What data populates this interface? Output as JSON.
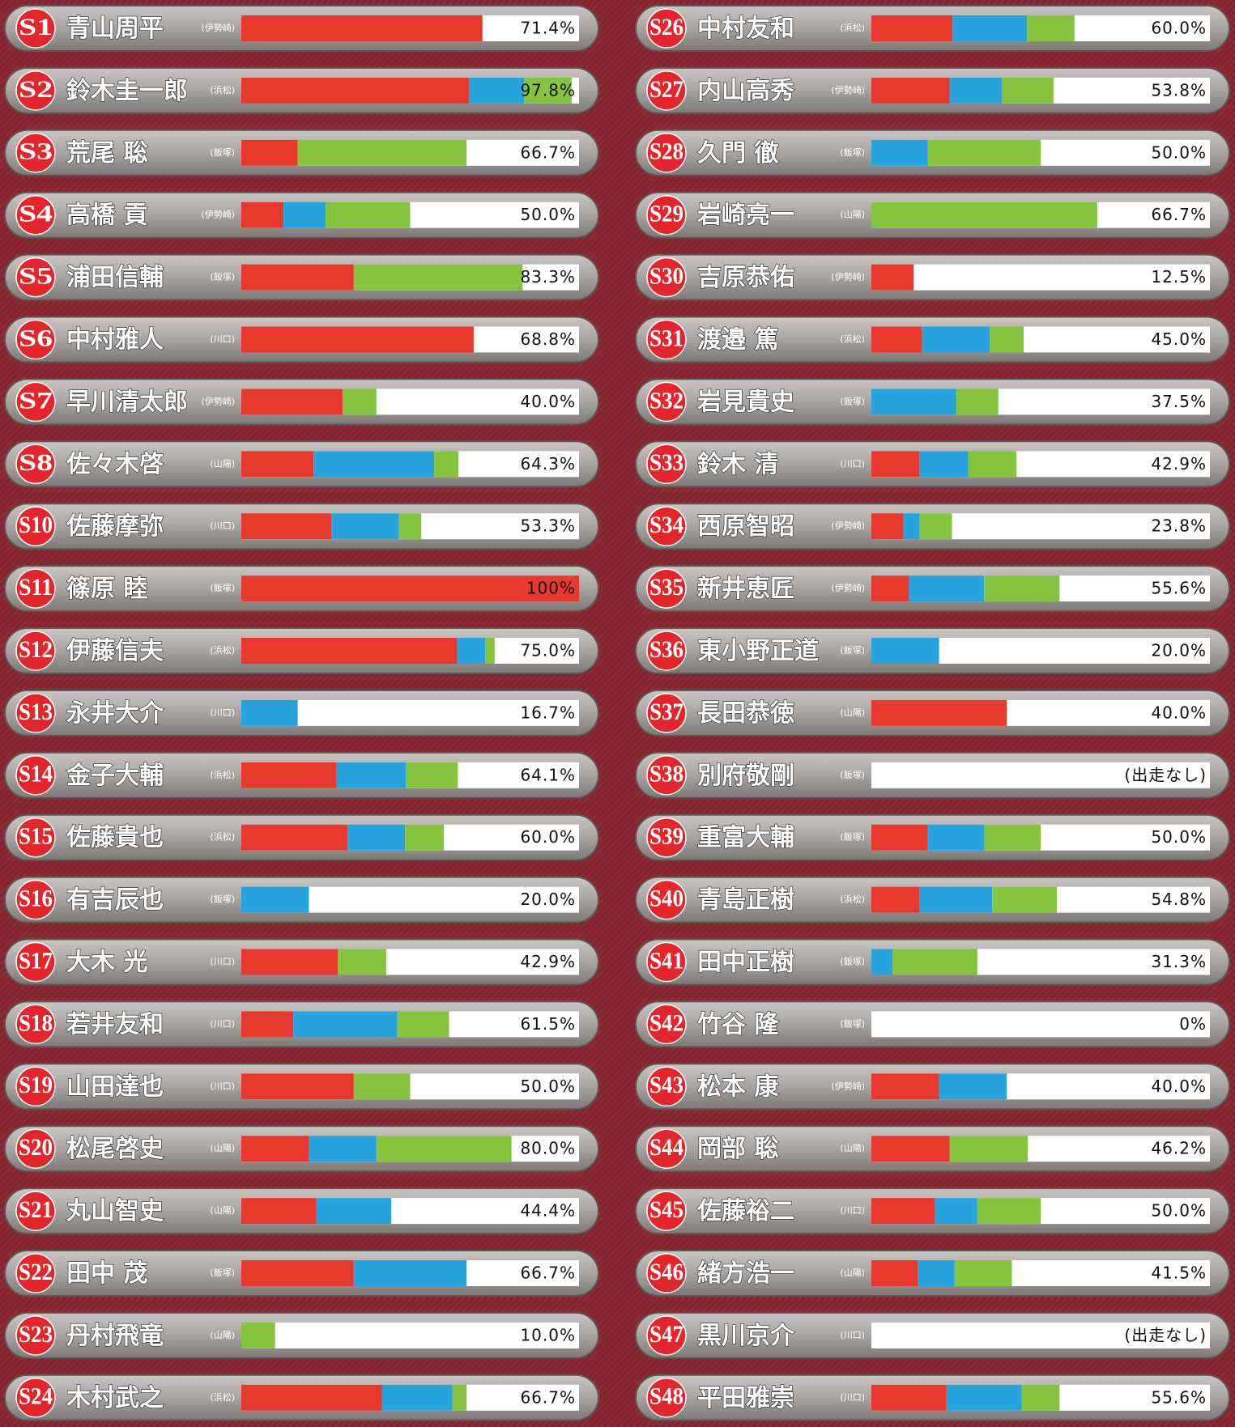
{
  "chart_data": [
    {
      "type": "bar",
      "orientation": "horizontal",
      "stacked": true,
      "xlim": [
        0,
        100
      ],
      "categories": [
        "S1",
        "S2",
        "S3",
        "S4",
        "S5",
        "S6",
        "S7",
        "S8",
        "S10",
        "S11",
        "S12",
        "S13",
        "S14",
        "S15",
        "S16",
        "S17",
        "S18",
        "S19",
        "S20",
        "S21",
        "S22",
        "S23",
        "S24"
      ],
      "names": [
        "青山周平",
        "鈴木圭一郎",
        "荒尾 聡",
        "高橋 貢",
        "浦田信輔",
        "中村雅人",
        "早川清太郎",
        "佐々木啓",
        "佐藤摩弥",
        "篠原 睦",
        "伊藤信夫",
        "永井大介",
        "金子大輔",
        "佐藤貴也",
        "有吉辰也",
        "大木 光",
        "若井友和",
        "山田達也",
        "松尾啓史",
        "丸山智史",
        "田中 茂",
        "丹村飛竜",
        "木村武之"
      ],
      "branches": [
        "(伊勢崎)",
        "(浜松)",
        "(飯塚)",
        "(伊勢崎)",
        "(飯塚)",
        "(川口)",
        "(伊勢崎)",
        "(山陽)",
        "(川口)",
        "(飯塚)",
        "(浜松)",
        "(川口)",
        "(浜松)",
        "(浜松)",
        "(飯塚)",
        "(川口)",
        "(川口)",
        "(川口)",
        "(山陽)",
        "(山陽)",
        "(飯塚)",
        "(山陽)",
        "(浜松)"
      ],
      "series": [
        {
          "color": "#e8392f",
          "values": [
            71.4,
            67.4,
            16.7,
            12.5,
            33.3,
            68.8,
            30,
            21.4,
            26.7,
            100,
            63.9,
            0,
            28.2,
            31.4,
            0,
            28.6,
            15.4,
            33.3,
            20,
            22.2,
            33.3,
            0,
            41.7
          ]
        },
        {
          "color": "#27a3dd",
          "values": [
            0,
            16.3,
            0,
            12.5,
            0,
            0,
            0,
            35.7,
            20,
            0,
            8.3,
            16.7,
            20.5,
            17.1,
            20,
            0,
            30.8,
            0,
            20,
            22.2,
            33.4,
            0,
            20.8
          ]
        },
        {
          "color": "#86c440",
          "values": [
            0,
            14.1,
            50,
            25,
            50,
            0,
            10,
            7.2,
            6.6,
            0,
            2.8,
            0,
            15.4,
            11.5,
            0,
            14.3,
            15.3,
            16.7,
            40,
            0,
            0,
            10,
            4.2
          ]
        }
      ],
      "totals": [
        71.4,
        97.8,
        66.7,
        50,
        83.3,
        68.8,
        40,
        64.3,
        53.3,
        100,
        75,
        16.7,
        64.1,
        60,
        20,
        42.9,
        61.5,
        50,
        80,
        44.4,
        66.7,
        10,
        66.7
      ],
      "value_labels": [
        "71.4%",
        "97.8%",
        "66.7%",
        "50.0%",
        "83.3%",
        "68.8%",
        "40.0%",
        "64.3%",
        "53.3%",
        "100%",
        "75.0%",
        "16.7%",
        "64.1%",
        "60.0%",
        "20.0%",
        "42.9%",
        "61.5%",
        "50.0%",
        "80.0%",
        "44.4%",
        "66.7%",
        "10.0%",
        "66.7%"
      ]
    },
    {
      "type": "bar",
      "orientation": "horizontal",
      "stacked": true,
      "xlim": [
        0,
        100
      ],
      "categories": [
        "S26",
        "S27",
        "S28",
        "S29",
        "S30",
        "S31",
        "S32",
        "S33",
        "S34",
        "S35",
        "S36",
        "S37",
        "S38",
        "S39",
        "S40",
        "S41",
        "S42",
        "S43",
        "S44",
        "S45",
        "S46",
        "S47",
        "S48"
      ],
      "names": [
        "中村友和",
        "内山高秀",
        "久門 徹",
        "岩崎亮一",
        "吉原恭佑",
        "渡邉 篤",
        "岩見貴史",
        "鈴木 清",
        "西原智昭",
        "新井恵匠",
        "東小野正道",
        "長田恭徳",
        "別府敬剛",
        "重富大輔",
        "青島正樹",
        "田中正樹",
        "竹谷 隆",
        "松本 康",
        "岡部 聡",
        "佐藤裕二",
        "緒方浩一",
        "黒川京介",
        "平田雅崇"
      ],
      "branches": [
        "(浜松)",
        "(伊勢崎)",
        "(飯塚)",
        "(山陽)",
        "(伊勢崎)",
        "(浜松)",
        "(飯塚)",
        "(川口)",
        "(伊勢崎)",
        "(伊勢崎)",
        "(飯塚)",
        "(山陽)",
        "(飯塚)",
        "(飯塚)",
        "(浜松)",
        "(飯塚)",
        "(飯塚)",
        "(伊勢崎)",
        "(山陽)",
        "(川口)",
        "(山陽)",
        "(川口)",
        "(川口)"
      ],
      "series": [
        {
          "color": "#e8392f",
          "values": [
            24,
            23.1,
            0,
            0,
            12.5,
            15,
            0,
            14.3,
            9.5,
            11.1,
            0,
            40,
            null,
            16.7,
            14.3,
            0,
            0,
            20,
            23.1,
            18.8,
            13.8,
            null,
            22.2
          ]
        },
        {
          "color": "#27a3dd",
          "values": [
            22,
            15.4,
            16.7,
            0,
            0,
            20,
            25,
            14.3,
            4.8,
            22.2,
            20,
            0,
            null,
            16.7,
            21.4,
            6.3,
            0,
            20,
            0,
            12.5,
            10.8,
            null,
            22.2
          ]
        },
        {
          "color": "#86c440",
          "values": [
            14,
            15.3,
            33.3,
            66.7,
            0,
            10,
            12.5,
            14.3,
            9.5,
            22.3,
            0,
            0,
            null,
            16.6,
            19.1,
            25,
            0,
            0,
            23.1,
            18.7,
            16.9,
            null,
            11.2
          ]
        }
      ],
      "totals": [
        60,
        53.8,
        50,
        66.7,
        12.5,
        45,
        37.5,
        42.9,
        23.8,
        55.6,
        20,
        40,
        null,
        50,
        54.8,
        31.3,
        0,
        40,
        46.2,
        50,
        41.5,
        null,
        55.6
      ],
      "value_labels": [
        "60.0%",
        "53.8%",
        "50.0%",
        "66.7%",
        "12.5%",
        "45.0%",
        "37.5%",
        "42.9%",
        "23.8%",
        "55.6%",
        "20.0%",
        "40.0%",
        "(出走なし)",
        "50.0%",
        "54.8%",
        "31.3%",
        "0%",
        "40.0%",
        "46.2%",
        "50.0%",
        "41.5%",
        "(出走なし)",
        "55.6%"
      ]
    }
  ]
}
